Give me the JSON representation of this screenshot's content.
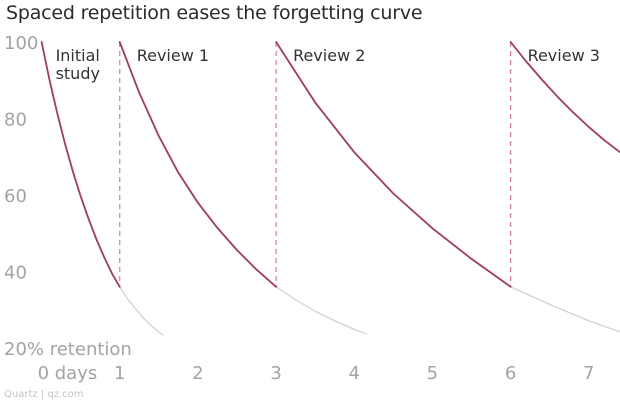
{
  "title": "Spaced repetition eases the forgetting curve",
  "source": "Quartz | qz.com",
  "colors": {
    "curve": "#a53a5a",
    "faded": "#d9d3d6",
    "review_line": "#e07b93",
    "axis_text": "#a3a3a3",
    "annotation_text": "#333333"
  },
  "chart_data": {
    "type": "line",
    "title": "Spaced repetition eases the forgetting curve",
    "xlabel": "",
    "ylabel": "",
    "xlim": [
      -0.02,
      7.4
    ],
    "ylim": [
      20,
      100
    ],
    "grid": false,
    "x_ticks": [
      0,
      1,
      2,
      3,
      4,
      5,
      6,
      7
    ],
    "x_tick_labels": [
      "0 days",
      "1",
      "2",
      "3",
      "4",
      "5",
      "6",
      "7"
    ],
    "y_ticks": [
      20,
      40,
      60,
      80,
      100
    ],
    "y_tick_labels": [
      "20% retention",
      "40",
      "60",
      "80",
      "100"
    ],
    "series": [
      {
        "style": "solid",
        "x": [
          0,
          0.1,
          0.2,
          0.3,
          0.4,
          0.5,
          0.6,
          0.7,
          0.8,
          0.9,
          1.0
        ],
        "y": [
          100,
          90.2,
          81.4,
          73.4,
          66.2,
          59.7,
          53.8,
          48.5,
          43.8,
          39.5,
          36
        ]
      },
      {
        "style": "faded",
        "x": [
          1.0,
          1.1,
          1.2,
          1.3,
          1.4,
          1.5,
          1.55
        ],
        "y": [
          36,
          32.9,
          30.3,
          27.9,
          25.9,
          24.2,
          23.4
        ]
      },
      {
        "style": "solid",
        "x": [
          1.0,
          1.25,
          1.5,
          1.75,
          2.0,
          2.25,
          2.5,
          2.75,
          3.0
        ],
        "y": [
          100,
          86.7,
          75.4,
          65.8,
          58,
          51.4,
          45.6,
          40.5,
          36
        ]
      },
      {
        "style": "faded",
        "x": [
          3.0,
          3.25,
          3.5,
          3.75,
          4.0,
          4.15
        ],
        "y": [
          36,
          32.6,
          29.6,
          27.1,
          24.9,
          23.7
        ]
      },
      {
        "style": "solid",
        "x": [
          3.0,
          3.5,
          4.0,
          4.5,
          5.0,
          5.5,
          6.0
        ],
        "y": [
          100,
          84.2,
          71.2,
          60.4,
          51.3,
          43.3,
          36
        ]
      },
      {
        "style": "faded",
        "x": [
          6.0,
          6.5,
          7.0,
          7.4
        ],
        "y": [
          36,
          31.4,
          27.1,
          24.2
        ]
      },
      {
        "style": "solid",
        "x": [
          6.0,
          6.2,
          6.4,
          6.6,
          6.8,
          7.0,
          7.2,
          7.4
        ],
        "y": [
          100,
          94.9,
          90.2,
          85.7,
          81.6,
          77.8,
          74.3,
          71.2
        ]
      }
    ],
    "review_markers": [
      {
        "x": 1,
        "label": "Review 1"
      },
      {
        "x": 3,
        "label": "Review 2"
      },
      {
        "x": 6,
        "label": "Review 3"
      }
    ],
    "annotations": [
      {
        "x": 0,
        "lines": [
          "Initial",
          "study"
        ]
      }
    ]
  }
}
